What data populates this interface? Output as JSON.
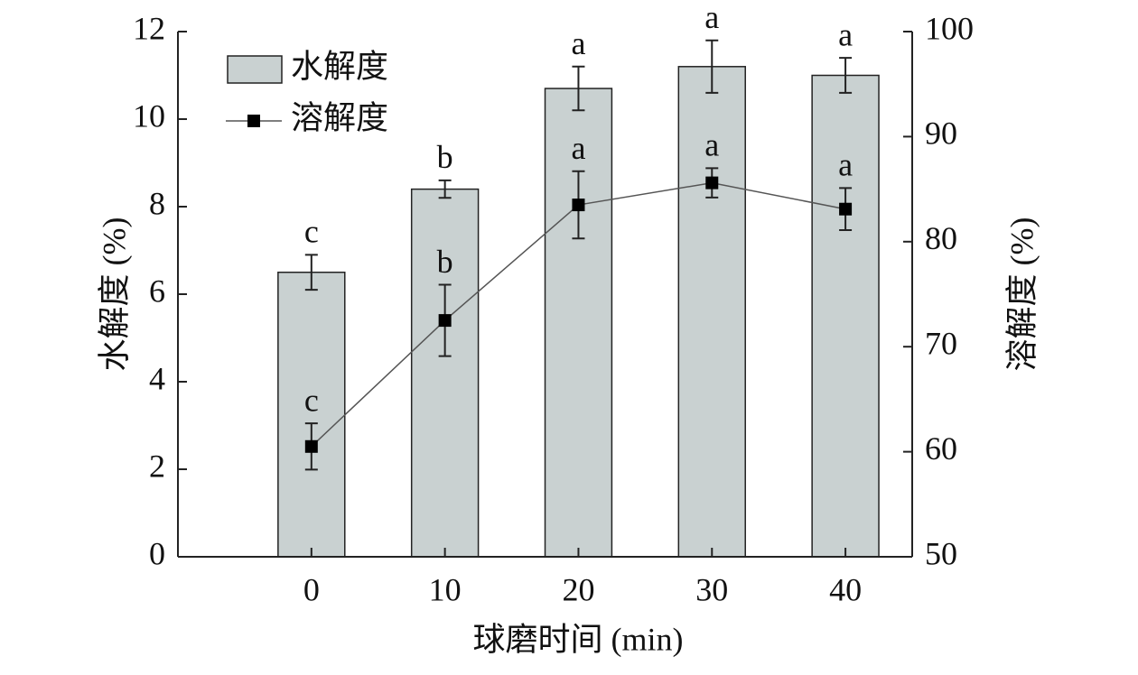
{
  "chart_data": {
    "type": "bar_line",
    "x_label": "球磨时间 (min)",
    "y_label": "水解度 (%)",
    "y2_label": "溶解度 (%)",
    "x": [
      0,
      10,
      20,
      30,
      40
    ],
    "xlim": [
      -10,
      45
    ],
    "xticks": [
      0,
      10,
      20,
      30,
      40
    ],
    "ylim": [
      0,
      12
    ],
    "yticks": [
      0,
      2,
      4,
      6,
      8,
      10,
      12
    ],
    "y2lim": [
      50,
      100
    ],
    "y2ticks": [
      50,
      60,
      70,
      80,
      90,
      100
    ],
    "legend": "upper left",
    "series": [
      {
        "name": "水解度",
        "type": "bar",
        "color": "#c9d1d1",
        "values": [
          6.5,
          8.4,
          10.7,
          11.2,
          11.0
        ],
        "errors": [
          0.4,
          0.2,
          0.5,
          0.6,
          0.4
        ],
        "letters": [
          "c",
          "b",
          "a",
          "a",
          "a"
        ]
      },
      {
        "name": "溶解度",
        "type": "line",
        "axis": "y2",
        "color": "#000000",
        "values": [
          60.5,
          72.5,
          83.5,
          85.6,
          83.1
        ],
        "errors": [
          2.2,
          3.4,
          3.2,
          1.4,
          2.0
        ],
        "letters": [
          "c",
          "b",
          "a",
          "a",
          "a"
        ]
      }
    ]
  }
}
